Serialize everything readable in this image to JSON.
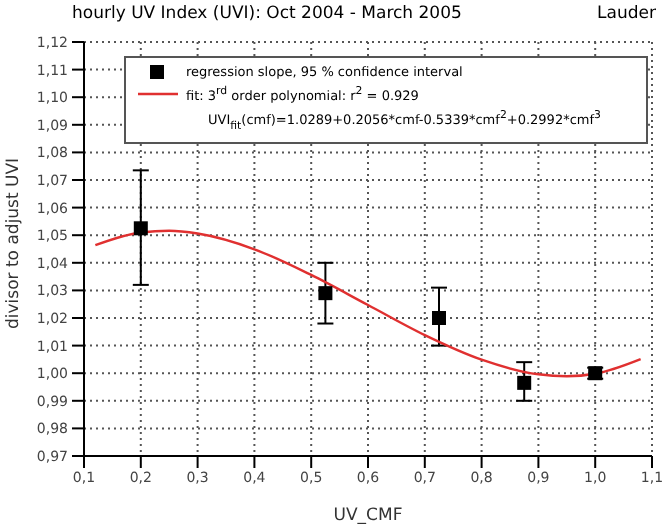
{
  "chart_data": {
    "type": "scatter",
    "title": "hourly UV Index (UVI): Oct 2004 - March 2005",
    "subtitle": "Lauder",
    "xlabel": "UV_CMF",
    "ylabel": "divisor to adjust UVI",
    "xlim": [
      0.1,
      1.1
    ],
    "ylim": [
      0.97,
      1.12
    ],
    "xticks": [
      {
        "value": 0.1,
        "label": "0,1"
      },
      {
        "value": 0.2,
        "label": "0,2"
      },
      {
        "value": 0.3,
        "label": "0,3"
      },
      {
        "value": 0.4,
        "label": "0,4"
      },
      {
        "value": 0.5,
        "label": "0,5"
      },
      {
        "value": 0.6,
        "label": "0,6"
      },
      {
        "value": 0.7,
        "label": "0,7"
      },
      {
        "value": 0.8,
        "label": "0,8"
      },
      {
        "value": 0.9,
        "label": "0,9"
      },
      {
        "value": 1.0,
        "label": "1,0"
      },
      {
        "value": 1.1,
        "label": "1,1"
      }
    ],
    "yticks": [
      {
        "value": 0.97,
        "label": "0,97"
      },
      {
        "value": 0.98,
        "label": "0,98"
      },
      {
        "value": 0.99,
        "label": "0,99"
      },
      {
        "value": 1.0,
        "label": "1,00"
      },
      {
        "value": 1.01,
        "label": "1,01"
      },
      {
        "value": 1.02,
        "label": "1,02"
      },
      {
        "value": 1.03,
        "label": "1,03"
      },
      {
        "value": 1.04,
        "label": "1,04"
      },
      {
        "value": 1.05,
        "label": "1,05"
      },
      {
        "value": 1.06,
        "label": "1,06"
      },
      {
        "value": 1.07,
        "label": "1,07"
      },
      {
        "value": 1.08,
        "label": "1,08"
      },
      {
        "value": 1.09,
        "label": "1,09"
      },
      {
        "value": 1.1,
        "label": "1,10"
      },
      {
        "value": 1.11,
        "label": "1,11"
      },
      {
        "value": 1.12,
        "label": "1,12"
      }
    ],
    "grid": true,
    "legend": "top",
    "annotations": [
      "UVI$_{fit}$(cmf)=1.0289+0.2056*cmf-0.5339*cmf$^{2}$+0.2992*cmf$^{3}$"
    ],
    "series": [
      {
        "name": "regression slope, 95 % confidence interval",
        "color": "#000000",
        "marker": "square",
        "x": [
          0.2,
          0.525,
          0.725,
          0.875,
          1.0
        ],
        "values": [
          1.0525,
          1.029,
          1.02,
          0.9965,
          1.0
        ],
        "errors": [
          [
            1.032,
            1.0735
          ],
          [
            1.018,
            1.04
          ],
          [
            1.01,
            1.031
          ],
          [
            0.99,
            1.004
          ],
          [
            0.998,
            1.002
          ]
        ]
      },
      {
        "type": "line",
        "name": "fit: 3$^{rd}$ order polynomial: r$^{2}$ = 0.929",
        "color": "#e03030",
        "marker": "none",
        "x": [
          0.12,
          0.2,
          0.25,
          0.3,
          0.4,
          0.5,
          0.6,
          0.7,
          0.8,
          0.9,
          0.95,
          1.0,
          1.08
        ],
        "values": [
          1.0464,
          1.051,
          1.0516,
          1.0506,
          1.0449,
          1.0356,
          1.0247,
          1.0138,
          1.0049,
          0.9996,
          0.9989,
          0.9998,
          1.0051
        ]
      }
    ]
  }
}
